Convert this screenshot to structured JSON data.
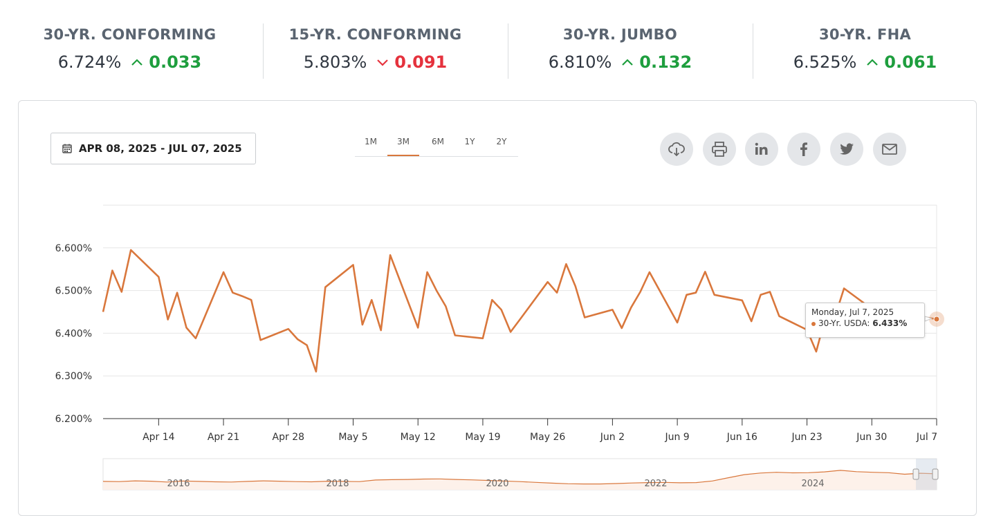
{
  "rates": [
    {
      "name": "30-YR. CONFORMING",
      "value": "6.724%",
      "change": "0.033",
      "direction": "up"
    },
    {
      "name": "15-YR. CONFORMING",
      "value": "5.803%",
      "change": "0.091",
      "direction": "down"
    },
    {
      "name": "30-YR. JUMBO",
      "value": "6.810%",
      "change": "0.132",
      "direction": "up"
    },
    {
      "name": "30-YR. FHA",
      "value": "6.525%",
      "change": "0.061",
      "direction": "up"
    }
  ],
  "toolbar": {
    "date_range": "APR 08, 2025 - JUL 07, 2025",
    "ranges": [
      "1M",
      "3M",
      "6M",
      "1Y",
      "2Y"
    ],
    "active_range": "3M",
    "share_icons": [
      "download-icon",
      "print-icon",
      "linkedin-icon",
      "facebook-icon",
      "twitter-icon",
      "email-icon"
    ]
  },
  "tooltip": {
    "date": "Monday, Jul 7, 2025",
    "series": "30-Yr. USDA:",
    "value": "6.433%"
  },
  "colors": {
    "line": "#d9773c",
    "up": "#1e9e3e",
    "down": "#e5323d",
    "navigator_fill": "#fdf1ea"
  },
  "chart_data": {
    "type": "line",
    "series": [
      {
        "name": "30-Yr. USDA",
        "values": [
          6.45,
          6.547,
          6.497,
          6.595,
          6.532,
          6.432,
          6.495,
          6.413,
          6.388,
          6.543,
          6.495,
          6.487,
          6.478,
          6.384,
          6.41,
          6.386,
          6.372,
          6.31,
          6.508,
          6.56,
          6.42,
          6.478,
          6.407,
          6.583,
          6.413,
          6.543,
          6.5,
          6.463,
          6.395,
          6.388,
          6.478,
          6.455,
          6.403,
          6.432,
          6.52,
          6.495,
          6.562,
          6.51,
          6.437,
          6.455,
          6.412,
          6.46,
          6.497,
          6.543,
          6.425,
          6.49,
          6.495,
          6.544,
          6.49,
          6.477,
          6.428,
          6.49,
          6.497,
          6.44,
          6.408,
          6.357,
          6.438,
          6.437,
          6.505,
          6.457,
          6.433
        ]
      }
    ],
    "x_dates": [
      "2025-04-08",
      "2025-04-09",
      "2025-04-10",
      "2025-04-11",
      "2025-04-14",
      "2025-04-15",
      "2025-04-16",
      "2025-04-17",
      "2025-04-18",
      "2025-04-21",
      "2025-04-22",
      "2025-04-23",
      "2025-04-24",
      "2025-04-25",
      "2025-04-28",
      "2025-04-29",
      "2025-04-30",
      "2025-05-01",
      "2025-05-02",
      "2025-05-05",
      "2025-05-06",
      "2025-05-07",
      "2025-05-08",
      "2025-05-09",
      "2025-05-12",
      "2025-05-13",
      "2025-05-14",
      "2025-05-15",
      "2025-05-16",
      "2025-05-19",
      "2025-05-20",
      "2025-05-21",
      "2025-05-22",
      "2025-05-23",
      "2025-05-26",
      "2025-05-27",
      "2025-05-28",
      "2025-05-29",
      "2025-05-30",
      "2025-06-02",
      "2025-06-03",
      "2025-06-04",
      "2025-06-05",
      "2025-06-06",
      "2025-06-09",
      "2025-06-10",
      "2025-06-11",
      "2025-06-12",
      "2025-06-13",
      "2025-06-16",
      "2025-06-17",
      "2025-06-18",
      "2025-06-19",
      "2025-06-20",
      "2025-06-23",
      "2025-06-24",
      "2025-06-25",
      "2025-06-26",
      "2025-06-27",
      "2025-06-30",
      "2025-07-07"
    ],
    "x_ticks": [
      "Apr 14",
      "Apr 21",
      "Apr 28",
      "May 5",
      "May 12",
      "May 19",
      "May 26",
      "Jun 2",
      "Jun 9",
      "Jun 16",
      "Jun 23",
      "Jun 30",
      "Jul 7"
    ],
    "y_ticks": [
      "6.600%",
      "6.500%",
      "6.400%",
      "6.300%",
      "6.200%"
    ],
    "ylim": [
      6.2,
      6.7
    ],
    "navigator_years": [
      "2016",
      "2018",
      "2020",
      "2022",
      "2024"
    ],
    "grid": true,
    "legend": "none"
  }
}
